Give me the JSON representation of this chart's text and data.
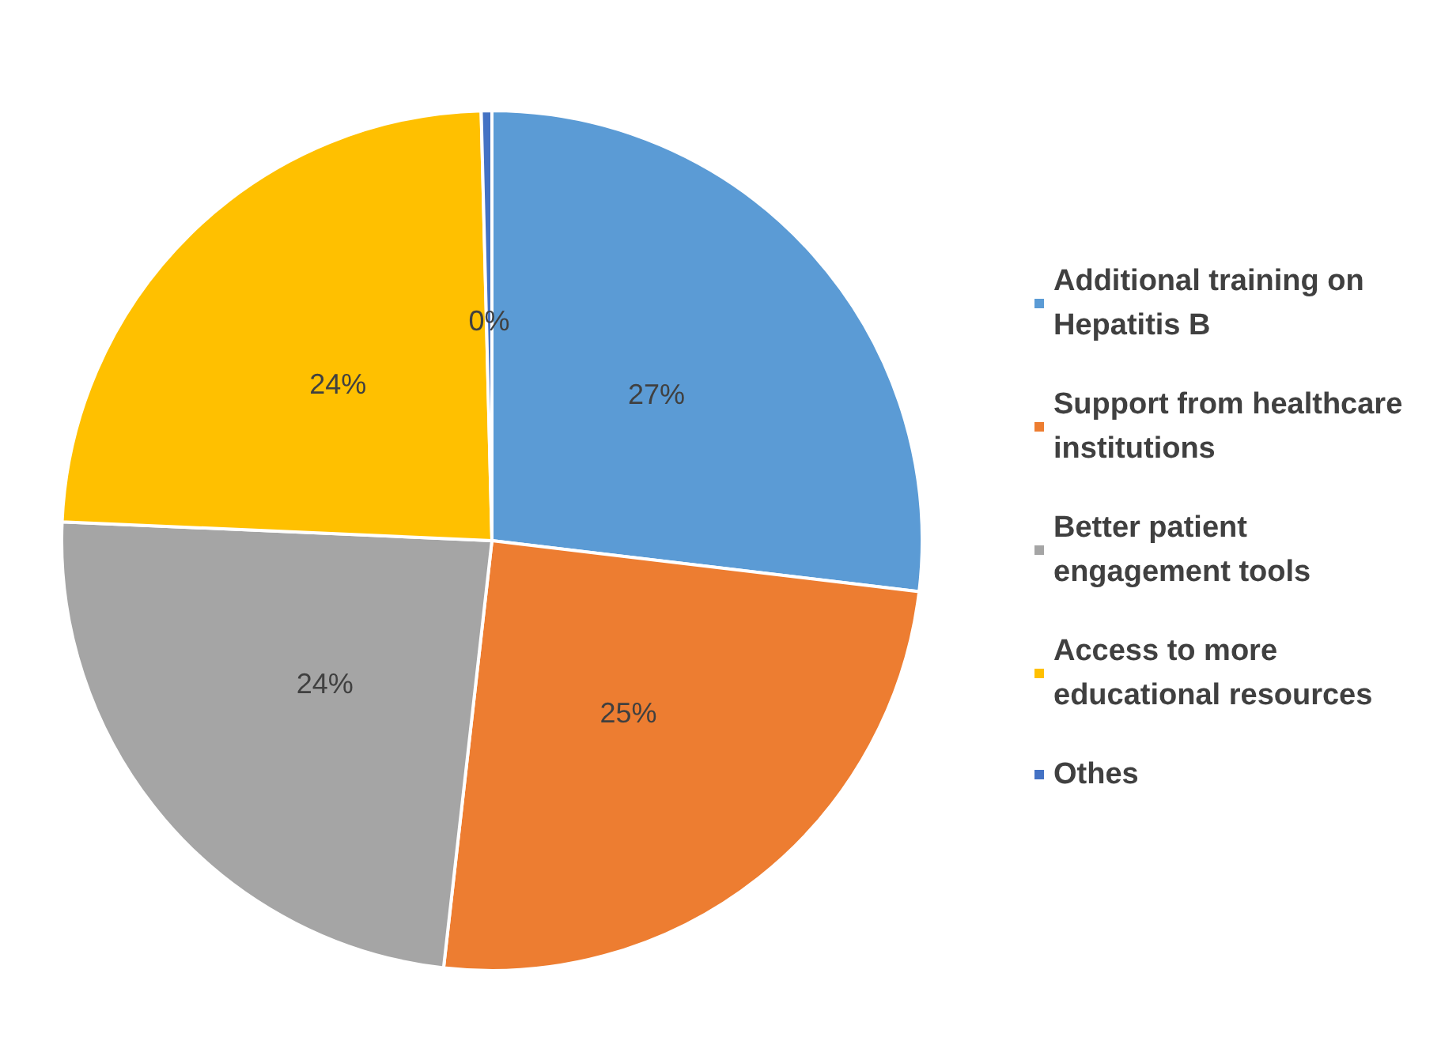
{
  "chart_data": {
    "type": "pie",
    "categories": [
      "Additional training on Hepatitis B",
      "Support from healthcare institutions",
      "Better patient engagement tools",
      "Access to more educational resources",
      "Othes"
    ],
    "values": [
      27,
      25,
      24,
      24,
      0.4
    ],
    "value_labels": [
      "27%",
      "25%",
      "24%",
      "24%",
      "0%"
    ],
    "colors": [
      "#5b9bd5",
      "#ed7d31",
      "#a5a5a5",
      "#ffc000",
      "#4472c4"
    ],
    "legend": "right"
  }
}
